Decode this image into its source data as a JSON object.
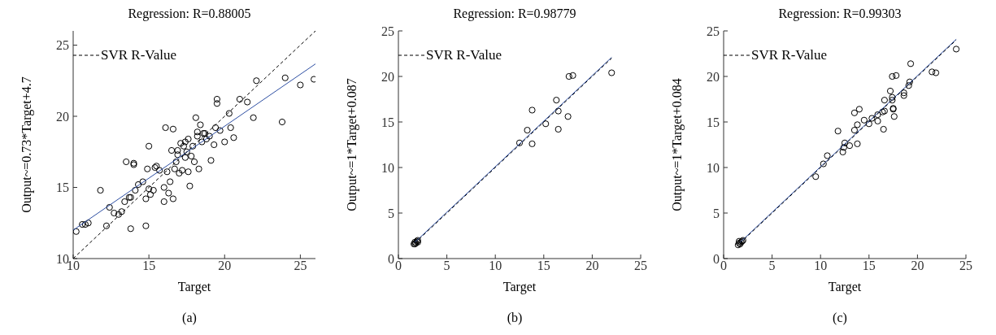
{
  "chart_data": [
    {
      "type": "scatter",
      "title": "Regression: R=0.88005",
      "xlabel": "Target",
      "ylabel": "Output~=0.73*Target+4.7",
      "annotations": [
        "(a)"
      ],
      "xlim": [
        10,
        26
      ],
      "ylim": [
        10,
        26
      ],
      "xticks": [
        10,
        15,
        20,
        25
      ],
      "yticks": [
        10,
        15,
        20,
        25
      ],
      "grid": false,
      "legend": "top left",
      "marker": "circle",
      "series": [
        {
          "type": "scatter",
          "color": "#000000",
          "x": [
            10.2,
            10.6,
            10.8,
            11,
            11.8,
            12.2,
            12.4,
            12.7,
            13,
            13.2,
            13.4,
            13.5,
            13.7,
            13.8,
            13.8,
            14,
            14,
            14.1,
            14.3,
            14.6,
            14.8,
            14.8,
            14.9,
            15,
            15,
            15.1,
            15.3,
            15.4,
            15.5,
            15.7,
            16,
            16,
            16.1,
            16.2,
            16.3,
            16.4,
            16.5,
            16.6,
            16.6,
            16.7,
            16.8,
            16.9,
            17,
            17.2,
            17.3,
            17.4,
            17.5,
            17.6,
            17.7,
            17.8,
            17.9,
            18,
            18.1,
            18.2,
            18.3,
            18.4,
            18.5,
            18.6,
            18.8,
            19,
            19.1,
            19.3,
            19.4,
            19.5,
            19.5,
            19.7,
            20,
            20.3,
            20.4,
            20.6,
            21,
            21.5,
            21.9,
            22.1,
            23.8,
            24,
            25,
            25.9,
            17.1,
            17.6,
            18.2,
            18.7,
            16.9,
            17.4
          ],
          "values": [
            11.9,
            12.4,
            12.4,
            12.5,
            14.8,
            12.3,
            13.6,
            13.2,
            13.1,
            13.3,
            14,
            16.8,
            14.3,
            14.3,
            12.1,
            16.7,
            16.6,
            14.8,
            15.2,
            15.4,
            12.3,
            14.2,
            16.3,
            14.9,
            17.9,
            14.5,
            14.8,
            16.4,
            16.5,
            16.2,
            14,
            15,
            19.2,
            16.1,
            14.6,
            15.4,
            17.6,
            19.1,
            14.2,
            16.3,
            16.8,
            17.3,
            16,
            16.2,
            17.9,
            18.2,
            17.5,
            16.1,
            15.1,
            17.2,
            17.9,
            16.8,
            19.9,
            18.6,
            16.3,
            19.4,
            18.2,
            18.8,
            18.4,
            18.6,
            16.9,
            18,
            19.2,
            21.2,
            20.9,
            19,
            18.2,
            20.2,
            19.2,
            18.5,
            21.2,
            21,
            19.9,
            22.5,
            19.6,
            22.7,
            22.2,
            22.6,
            18.1,
            18.4,
            18.9,
            18.8,
            17.6,
            17.1
          ]
        },
        {
          "type": "line",
          "marker": "none",
          "color": "#2e4fa3",
          "x": [
            10,
            26
          ],
          "values": [
            12,
            23.68
          ]
        },
        {
          "type": "line",
          "marker": "none",
          "name": "SVR R-Value",
          "line_style": "dashed",
          "color": "#000000",
          "x": [
            10,
            26
          ],
          "values": [
            10,
            26
          ]
        }
      ]
    },
    {
      "type": "scatter",
      "title": "Regression: R=0.98779",
      "xlabel": "Target",
      "ylabel": "Output~=1*Target+0.087",
      "annotations": [
        "(b)"
      ],
      "xlim": [
        0,
        25
      ],
      "ylim": [
        0,
        25
      ],
      "xticks": [
        0,
        5,
        10,
        15,
        20,
        25
      ],
      "yticks": [
        0,
        5,
        10,
        15,
        20,
        25
      ],
      "grid": false,
      "legend": "top left",
      "marker": "circle",
      "series": [
        {
          "type": "scatter",
          "color": "#000000",
          "x": [
            1.6,
            1.7,
            1.8,
            1.9,
            2,
            1.7,
            2,
            12.5,
            13.3,
            13.8,
            13.8,
            15.2,
            16.3,
            16.5,
            16.5,
            17.5,
            17.6,
            18,
            22
          ],
          "values": [
            1.6,
            1.8,
            1.7,
            1.9,
            2,
            1.6,
            1.8,
            12.7,
            14.1,
            12.6,
            16.3,
            14.8,
            17.4,
            16.2,
            14.2,
            15.6,
            20,
            20.1,
            20.4
          ]
        },
        {
          "type": "line",
          "marker": "none",
          "color": "#2e4fa3",
          "x": [
            1.7,
            22
          ],
          "values": [
            1.79,
            22.09
          ]
        },
        {
          "type": "line",
          "marker": "none",
          "name": "SVR R-Value",
          "line_style": "dashed",
          "color": "#000000",
          "x": [
            1.7,
            22
          ],
          "values": [
            1.7,
            22
          ]
        }
      ]
    },
    {
      "type": "scatter",
      "title": "Regression: R=0.99303",
      "xlabel": "Target",
      "ylabel": "Output~=1*Target+0.084",
      "annotations": [
        "(c)"
      ],
      "xlim": [
        0,
        25
      ],
      "ylim": [
        0,
        25
      ],
      "xticks": [
        0,
        5,
        10,
        15,
        20,
        25
      ],
      "yticks": [
        0,
        5,
        10,
        15,
        20,
        25
      ],
      "grid": false,
      "legend": "top left",
      "marker": "circle",
      "series": [
        {
          "type": "scatter",
          "color": "#000000",
          "x": [
            1.5,
            1.6,
            1.7,
            1.8,
            1.9,
            2,
            1.6,
            9.5,
            10.3,
            10.7,
            11.8,
            12.3,
            12.4,
            12.5,
            13,
            13.5,
            13.5,
            13.8,
            13.8,
            14,
            14.5,
            15,
            15.3,
            15.9,
            15.9,
            16.4,
            16.5,
            16.6,
            16.6,
            17.2,
            17.4,
            17.4,
            17.4,
            17.5,
            17.5,
            17.6,
            17.8,
            18.6,
            18.6,
            19.1,
            19.2,
            19.3,
            21.5,
            21.9,
            24
          ],
          "values": [
            1.5,
            1.7,
            1.6,
            1.8,
            1.9,
            2,
            1.9,
            9,
            10.4,
            11.3,
            14,
            11.7,
            12.2,
            12.7,
            12.4,
            14.1,
            16,
            12.6,
            14.7,
            16.4,
            15.2,
            14.8,
            15.4,
            15.1,
            15.8,
            16.1,
            14.2,
            16.2,
            17.4,
            18.4,
            17.4,
            17.7,
            20,
            16.5,
            16.4,
            15.6,
            20.1,
            18.2,
            17.9,
            19,
            19.4,
            21.4,
            20.5,
            20.4,
            23
          ]
        },
        {
          "type": "line",
          "marker": "none",
          "color": "#2e4fa3",
          "x": [
            1.7,
            24
          ],
          "values": [
            1.78,
            24.08
          ]
        },
        {
          "type": "line",
          "marker": "none",
          "name": "SVR R-Value",
          "line_style": "dashed",
          "color": "#000000",
          "x": [
            1.7,
            24
          ],
          "values": [
            1.7,
            24
          ]
        }
      ]
    }
  ]
}
